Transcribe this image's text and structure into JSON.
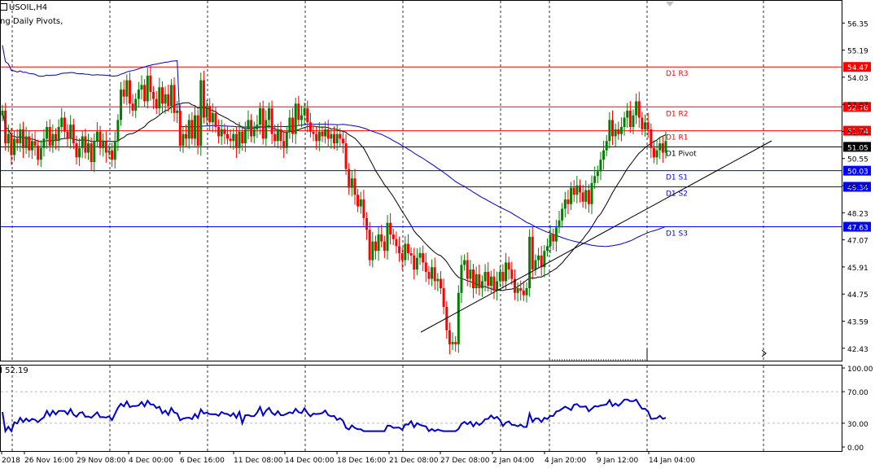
{
  "header": {
    "symbol": "USOIL,H4",
    "indicator": "ng Daily Pivots,"
  },
  "sub": {
    "label": "I 52.19"
  },
  "chart_data": {
    "type": "candlestick",
    "symbol": "USOIL",
    "timeframe": "H4",
    "price_axis": {
      "ylim": [
        41.9,
        57.3
      ],
      "ticks": [
        "56.35",
        "55.19",
        "54.03",
        "52.87",
        "51.71",
        "50.55",
        "49.39",
        "48.23",
        "47.07",
        "45.91",
        "44.75",
        "43.59",
        "42.43"
      ]
    },
    "pivots": [
      {
        "name": "D1 R3",
        "value": 54.47,
        "label": "54.47",
        "color": "#ff0000"
      },
      {
        "name": "D1 R2",
        "value": 52.76,
        "label": "52.76",
        "color": "#ff0000"
      },
      {
        "name": "D1 R1",
        "value": 51.74,
        "label": "51.74",
        "color": "#ff0000"
      },
      {
        "name": "D1 Pivot",
        "value": 51.05,
        "label": "51.05",
        "color": "#000000"
      },
      {
        "name": "D1 S1",
        "value": 50.03,
        "label": "50.03",
        "color": "#0000ff"
      },
      {
        "name": "D1 S2",
        "value": 49.34,
        "label": "49.34",
        "color": "#0000ff"
      },
      {
        "name": "D1 S3",
        "value": 47.63,
        "label": "47.63",
        "color": "#0000ff"
      }
    ],
    "x_labels": [
      "2018",
      "26 Nov 16:00",
      "29 Nov 08:00",
      "4 Dec 00:00",
      "6 Dec 16:00",
      "11 Dec 08:00",
      "14 Dec 00:00",
      "18 Dec 16:00",
      "21 Dec 08:00",
      "27 Dec 08:00",
      "2 Jan 04:00",
      "4 Jan 20:00",
      "9 Jan 12:00",
      "14 Jan 04:00"
    ],
    "candles_close": [
      52.6,
      51.2,
      51.6,
      50.7,
      51.4,
      51.2,
      51.8,
      51.0,
      51.5,
      50.9,
      51.3,
      51.1,
      50.5,
      51.0,
      51.4,
      51.9,
      51.1,
      51.6,
      51.3,
      51.9,
      52.3,
      51.7,
      51.4,
      52.0,
      51.2,
      50.6,
      51.0,
      51.5,
      50.8,
      51.2,
      50.4,
      51.3,
      51.7,
      51.0,
      51.3,
      50.8,
      50.9,
      50.5,
      51.3,
      52.2,
      53.5,
      53.2,
      53.9,
      52.9,
      52.6,
      53.1,
      53.5,
      53.7,
      53.0,
      54.1,
      53.4,
      53.1,
      52.7,
      53.6,
      52.9,
      53.3,
      52.8,
      53.7,
      52.5,
      52.6,
      51.1,
      51.6,
      51.4,
      52.2,
      51.4,
      52.4,
      51.1,
      53.9,
      52.3,
      52.8,
      52.1,
      52.5,
      51.9,
      51.5,
      51.8,
      51.6,
      51.4,
      51.3,
      51.6,
      51.0,
      51.7,
      51.2,
      51.8,
      52.2,
      51.5,
      51.8,
      52.0,
      52.7,
      51.4,
      52.2,
      52.7,
      51.6,
      51.3,
      51.8,
      51.3,
      51.0,
      51.7,
      52.3,
      51.6,
      52.9,
      52.2,
      52.4,
      52.7,
      52.1,
      51.7,
      51.6,
      51.3,
      51.7,
      51.5,
      51.8,
      51.4,
      51.6,
      51.2,
      51.6,
      51.4,
      51.2,
      50.1,
      49.3,
      49.7,
      49.0,
      48.5,
      48.8,
      48.0,
      47.5,
      46.2,
      47.0,
      46.6,
      47.3,
      47.0,
      46.6,
      47.8,
      47.3,
      47.1,
      46.8,
      46.5,
      46.2,
      46.9,
      46.5,
      46.4,
      45.8,
      46.3,
      46.5,
      46.1,
      45.7,
      45.4,
      45.9,
      45.3,
      45.4,
      45.0,
      44.2,
      43.2,
      42.6,
      42.7,
      42.6,
      44.8,
      46.0,
      46.2,
      45.4,
      45.8,
      45.0,
      45.6,
      45.0,
      45.3,
      45.7,
      45.1,
      45.5,
      44.9,
      45.3,
      45.7,
      45.3,
      46.1,
      45.8,
      45.4,
      44.8,
      45.0,
      44.9,
      44.7,
      45.0,
      47.2,
      45.8,
      46.2,
      46.4,
      45.9,
      46.6,
      46.8,
      47.3,
      47.0,
      47.6,
      47.9,
      48.4,
      48.8,
      48.6,
      49.3,
      49.0,
      49.4,
      49.1,
      48.7,
      49.2,
      48.6,
      49.5,
      49.8,
      50.0,
      50.5,
      50.9,
      51.3,
      52.2,
      51.5,
      51.8,
      51.6,
      51.9,
      52.3,
      52.6,
      51.9,
      52.4,
      53.0,
      52.3,
      51.8,
      52.1,
      51.8,
      51.0,
      50.6,
      50.9,
      51.2,
      50.8,
      51.3
    ]
  }
}
